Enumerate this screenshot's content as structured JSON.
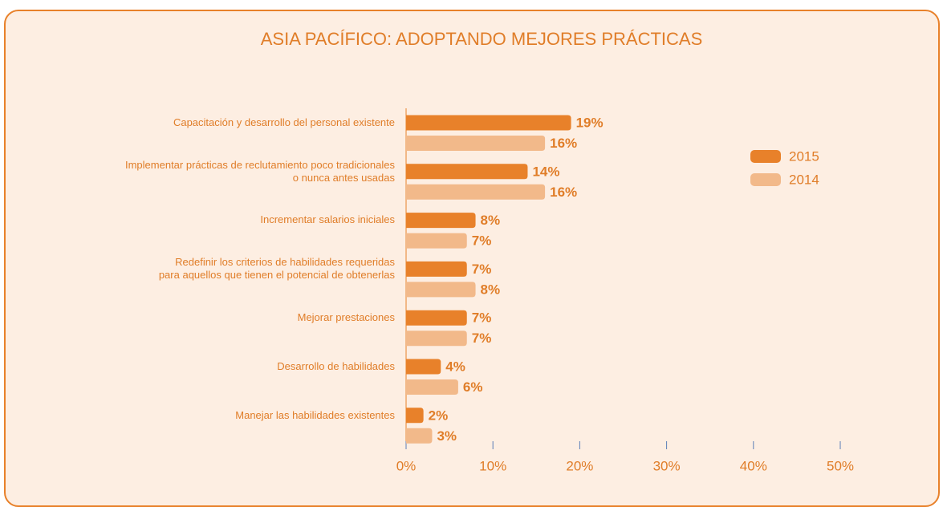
{
  "chart_data": {
    "type": "bar",
    "orientation": "horizontal",
    "title": "ASIA PACÍFICO: ADOPTANDO MEJORES PRÁCTICAS",
    "categories": [
      "Capacitación y desarrollo del personal existente",
      "Implementar prácticas de reclutamiento poco tradicionales\no nunca antes usadas",
      "Incrementar salarios iniciales",
      "Redefinir los criterios de habilidades requeridas\npara aquellos que tienen el potencial de obtenerlas",
      "Mejorar prestaciones",
      "Desarrollo de habilidades",
      "Manejar las habilidades existentes"
    ],
    "series": [
      {
        "name": "2015",
        "color": "#e8812a",
        "values": [
          19,
          14,
          8,
          7,
          7,
          4,
          2
        ],
        "value_labels": [
          "19%",
          "14%",
          "8%",
          "7%",
          "7%",
          "4%",
          "2%"
        ]
      },
      {
        "name": "2014",
        "color": "#f2b98a",
        "values": [
          16,
          16,
          7,
          8,
          7,
          6,
          3
        ],
        "value_labels": [
          "16%",
          "16%",
          "7%",
          "8%",
          "7%",
          "6%",
          "3%"
        ]
      }
    ],
    "xlim": [
      0,
      50
    ],
    "xticks": [
      {
        "value": 0,
        "label": "0%"
      },
      {
        "value": 10,
        "label": "10%"
      },
      {
        "value": 20,
        "label": "20%"
      },
      {
        "value": 30,
        "label": "30%"
      },
      {
        "value": 40,
        "label": "40%"
      },
      {
        "value": 50,
        "label": "50%"
      }
    ],
    "legend": "upper right"
  }
}
